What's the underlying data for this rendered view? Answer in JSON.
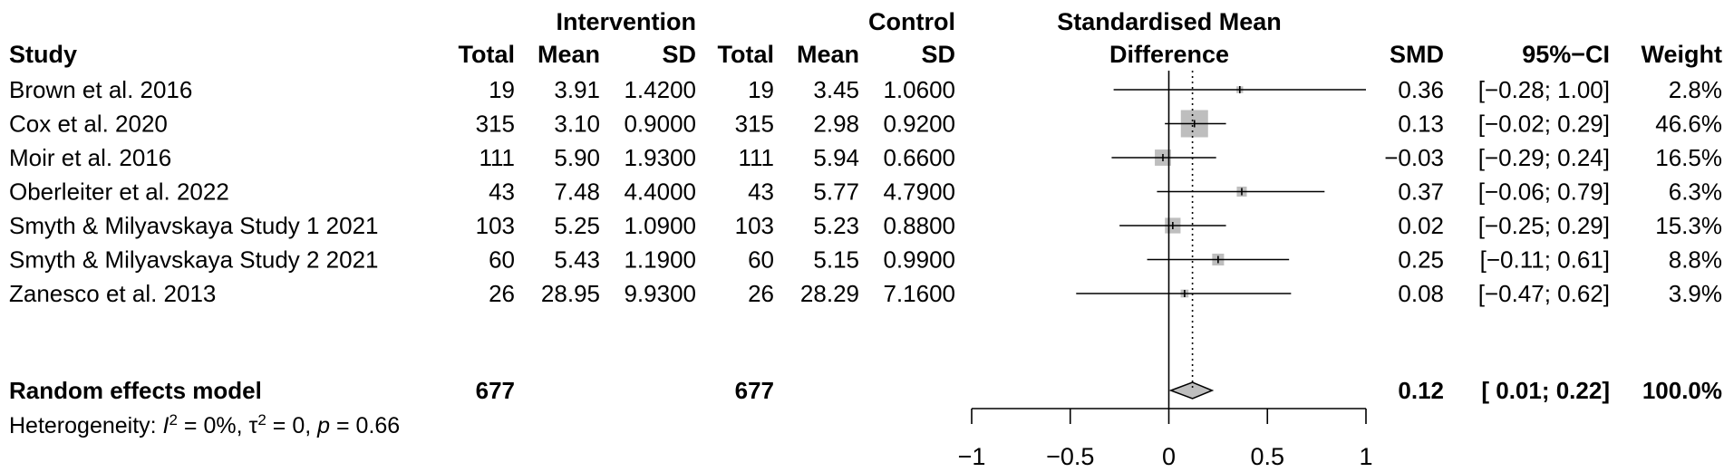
{
  "chart_data": {
    "type": "forest",
    "headers": {
      "group_intervention": "Intervention",
      "group_control": "Control",
      "smd_line1": "Standardised Mean",
      "smd_line2": "Difference",
      "study": "Study",
      "total": "Total",
      "mean": "Mean",
      "sd": "SD",
      "smd": "SMD",
      "ci": "95%−CI",
      "weight": "Weight"
    },
    "studies": [
      {
        "name": "Brown et al. 2016",
        "n_int": "19",
        "mean_int": "3.91",
        "sd_int": "1.4200",
        "n_ctl": "19",
        "mean_ctl": "3.45",
        "sd_ctl": "1.0600",
        "smd_text": "0.36",
        "ci_text": "[−0.28; 1.00]",
        "weight_text": "2.8%",
        "smd": 0.36,
        "lower": -0.28,
        "upper": 1.0,
        "weight": 2.8
      },
      {
        "name": "Cox et al. 2020",
        "n_int": "315",
        "mean_int": "3.10",
        "sd_int": "0.9000",
        "n_ctl": "315",
        "mean_ctl": "2.98",
        "sd_ctl": "0.9200",
        "smd_text": "0.13",
        "ci_text": "[−0.02; 0.29]",
        "weight_text": "46.6%",
        "smd": 0.13,
        "lower": -0.02,
        "upper": 0.29,
        "weight": 46.6
      },
      {
        "name": "Moir et al. 2016",
        "n_int": "111",
        "mean_int": "5.90",
        "sd_int": "1.9300",
        "n_ctl": "111",
        "mean_ctl": "5.94",
        "sd_ctl": "0.6600",
        "smd_text": "−0.03",
        "ci_text": "[−0.29; 0.24]",
        "weight_text": "16.5%",
        "smd": -0.03,
        "lower": -0.29,
        "upper": 0.24,
        "weight": 16.5
      },
      {
        "name": "Oberleiter et al. 2022",
        "n_int": "43",
        "mean_int": "7.48",
        "sd_int": "4.4000",
        "n_ctl": "43",
        "mean_ctl": "5.77",
        "sd_ctl": "4.7900",
        "smd_text": "0.37",
        "ci_text": "[−0.06; 0.79]",
        "weight_text": "6.3%",
        "smd": 0.37,
        "lower": -0.06,
        "upper": 0.79,
        "weight": 6.3
      },
      {
        "name": "Smyth & Milyavskaya Study 1 2021",
        "n_int": "103",
        "mean_int": "5.25",
        "sd_int": "1.0900",
        "n_ctl": "103",
        "mean_ctl": "5.23",
        "sd_ctl": "0.8800",
        "smd_text": "0.02",
        "ci_text": "[−0.25; 0.29]",
        "weight_text": "15.3%",
        "smd": 0.02,
        "lower": -0.25,
        "upper": 0.29,
        "weight": 15.3
      },
      {
        "name": "Smyth & Milyavskaya Study 2 2021",
        "n_int": "60",
        "mean_int": "5.43",
        "sd_int": "1.1900",
        "n_ctl": "60",
        "mean_ctl": "5.15",
        "sd_ctl": "0.9900",
        "smd_text": "0.25",
        "ci_text": "[−0.11; 0.61]",
        "weight_text": "8.8%",
        "smd": 0.25,
        "lower": -0.11,
        "upper": 0.61,
        "weight": 8.8
      },
      {
        "name": "Zanesco et al. 2013",
        "n_int": "26",
        "mean_int": "28.95",
        "sd_int": "9.9300",
        "n_ctl": "26",
        "mean_ctl": "28.29",
        "sd_ctl": "7.1600",
        "smd_text": "0.08",
        "ci_text": "[−0.47; 0.62]",
        "weight_text": "3.9%",
        "smd": 0.08,
        "lower": -0.47,
        "upper": 0.62,
        "weight": 3.9
      }
    ],
    "pooled": {
      "label": "Random effects model",
      "n_int": "677",
      "n_ctl": "677",
      "smd_text": "0.12",
      "ci_text": "[ 0.01; 0.22]",
      "weight_text": "100.0%",
      "smd": 0.12,
      "lower": 0.01,
      "upper": 0.22
    },
    "heterogeneity": {
      "prefix": "Heterogeneity: ",
      "i2_symbol": "I",
      "i2_sup": "2",
      "i2_value": " = 0%, ",
      "tau_symbol": "τ",
      "tau_sup": "2",
      "tau_value": " = 0, ",
      "p_symbol": "p",
      "p_value": " = 0.66"
    },
    "x_axis": {
      "range": [
        -1,
        1
      ],
      "ticks": [
        -1,
        -0.5,
        0,
        0.5,
        1
      ],
      "tick_labels": [
        "−1",
        "−0.5",
        "0",
        "0.5",
        "1"
      ]
    },
    "null_line": 0,
    "colors": {
      "square": "#bebebe",
      "diamond": "#bebebe",
      "line": "#000000"
    }
  }
}
